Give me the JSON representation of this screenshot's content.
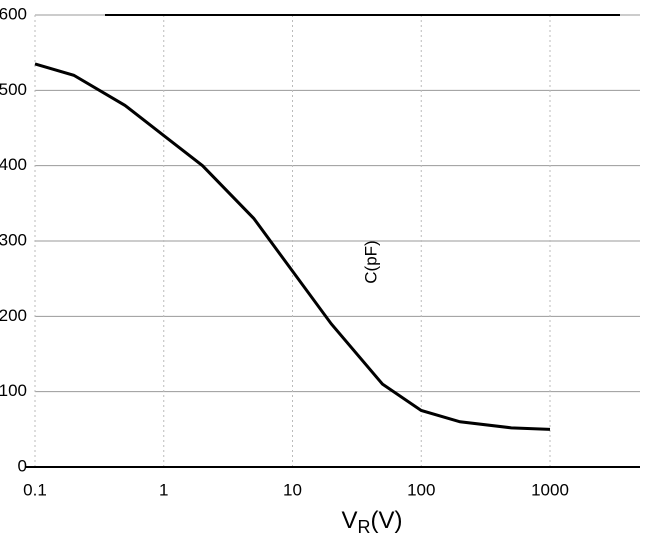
{
  "chart_data": {
    "type": "line",
    "ylabel": "C(pF)",
    "xlabel": {
      "main": "V",
      "sub": "R",
      "unit": "(V)"
    },
    "x": [
      0.1,
      0.2,
      0.5,
      1,
      2,
      5,
      10,
      20,
      50,
      100,
      200,
      500,
      1000
    ],
    "series": [
      {
        "name": "C",
        "color": "#000000",
        "values": [
          535,
          520,
          480,
          440,
          400,
          330,
          260,
          190,
          110,
          75,
          60,
          52,
          50
        ]
      }
    ],
    "xlim": [
      0.1,
      1000
    ],
    "ylim": [
      0,
      600
    ],
    "xticks": [
      0.1,
      1,
      10,
      100,
      1000
    ],
    "yticks": [
      0,
      100,
      200,
      300,
      400,
      500,
      600
    ],
    "log_x": true,
    "grid": true
  }
}
